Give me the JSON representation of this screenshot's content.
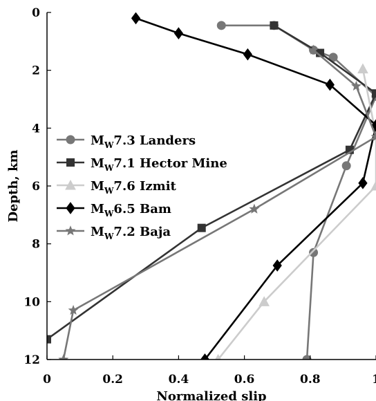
{
  "chart_data": {
    "type": "line",
    "xlabel": "Normalized slip",
    "ylabel": "Depth, km",
    "xlim": [
      0,
      1
    ],
    "ylim": [
      12,
      0
    ],
    "y_inverted": true,
    "xticks": [
      "0",
      "0.2",
      "0.4",
      "0.6",
      "0.8",
      "1"
    ],
    "yticks": [
      "0",
      "2",
      "4",
      "6",
      "8",
      "10",
      "12"
    ],
    "legend_position": "left-middle",
    "grid": false,
    "series": [
      {
        "key": "landers",
        "prefix": "M",
        "sub": "W",
        "mag": "7.3",
        "name": "Landers",
        "color": "#777777",
        "marker": "circle",
        "x": [
          0.53,
          0.69,
          0.81,
          0.87,
          1.0,
          0.91,
          0.81,
          0.79
        ],
        "y": [
          0.45,
          0.45,
          1.3,
          1.55,
          2.9,
          5.3,
          8.3,
          12.0
        ]
      },
      {
        "key": "hector",
        "prefix": "M",
        "sub": "W",
        "mag": "7.1",
        "name": "Hector Mine",
        "color": "#333333",
        "marker": "square",
        "x": [
          0.69,
          0.83,
          1.0,
          0.92,
          0.47,
          0.0
        ],
        "y": [
          0.45,
          1.4,
          2.8,
          4.75,
          7.45,
          11.3
        ]
      },
      {
        "key": "izmit",
        "prefix": "M",
        "sub": "W",
        "mag": "7.6",
        "name": "Izmit",
        "color": "#cccccc",
        "marker": "triangle",
        "x": [
          0.96,
          1.0,
          1.0,
          0.66,
          0.52
        ],
        "y": [
          1.95,
          4.25,
          6.0,
          10.0,
          12.0
        ]
      },
      {
        "key": "bam",
        "prefix": "M",
        "sub": "W",
        "mag": "6.5",
        "name": "Bam",
        "color": "#000000",
        "marker": "diamond",
        "x": [
          0.27,
          0.4,
          0.61,
          0.86,
          1.0,
          0.96,
          0.7,
          0.48
        ],
        "y": [
          0.2,
          0.72,
          1.45,
          2.5,
          3.9,
          5.9,
          8.75,
          12.0
        ]
      },
      {
        "key": "baja",
        "prefix": "M",
        "sub": "W",
        "mag": "7.2",
        "name": "Baja",
        "color": "#777777",
        "marker": "star",
        "x": [
          0.81,
          0.94,
          1.0,
          0.63,
          0.08,
          0.05
        ],
        "y": [
          1.3,
          2.55,
          4.3,
          6.8,
          10.3,
          12.0
        ]
      }
    ]
  }
}
